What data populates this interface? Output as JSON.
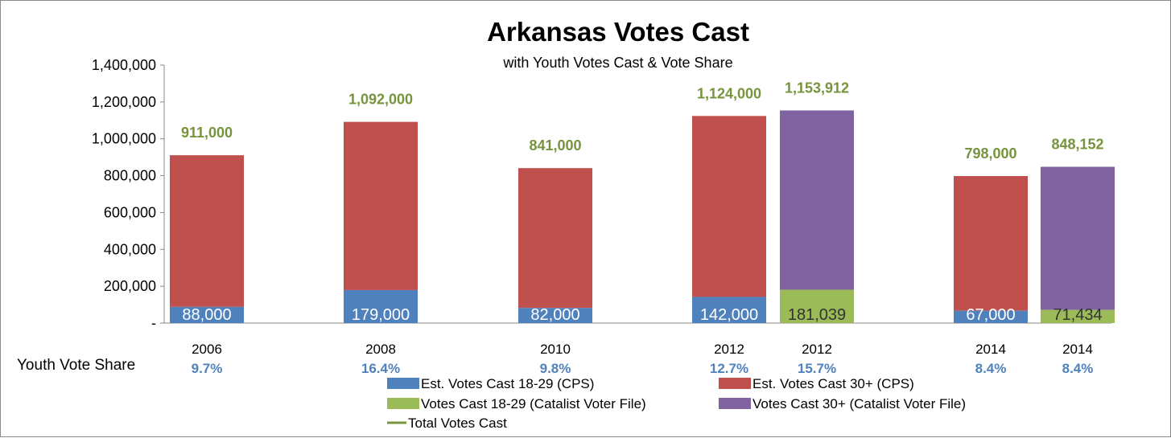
{
  "chart_data": {
    "type": "bar",
    "stacked": true,
    "title": "Arkansas Votes Cast",
    "subtitle": "with Youth Votes Cast & Vote Share",
    "ylim": [
      0,
      1400000
    ],
    "yticks": [
      "-",
      "200,000",
      "400,000",
      "600,000",
      "800,000",
      "1,000,000",
      "1,200,000",
      "1,400,000"
    ],
    "row_label": "Youth Vote Share",
    "grid": false,
    "legend_position": "bottom",
    "colors": {
      "youth_cps": "#4f81bd",
      "adult_cps": "#c0504d",
      "youth_catalist": "#9bbb59",
      "adult_catalist": "#8064a2",
      "total_label": "#77933c",
      "share_label": "#4f81bd"
    },
    "legend": [
      {
        "key": "youth_cps",
        "label": "Est. Votes Cast 18-29 (CPS)",
        "symbol": "box"
      },
      {
        "key": "adult_cps",
        "label": "Est. Votes Cast 30+ (CPS)",
        "symbol": "box"
      },
      {
        "key": "youth_catalist",
        "label": "Votes Cast 18-29 (Catalist Voter File)",
        "symbol": "box"
      },
      {
        "key": "adult_catalist",
        "label": "Votes Cast 30+ (Catalist Voter File)",
        "symbol": "box"
      },
      {
        "key": "total_label",
        "label": "Total Votes Cast",
        "symbol": "line"
      }
    ],
    "bars": [
      {
        "category": "2006",
        "source": "cps",
        "youth": 88000,
        "youth_label": "88,000",
        "total": 911000,
        "total_label": "911,000",
        "share": "9.7%"
      },
      {
        "category": "2008",
        "source": "cps",
        "youth": 179000,
        "youth_label": "179,000",
        "total": 1092000,
        "total_label": "1,092,000",
        "share": "16.4%"
      },
      {
        "category": "2010",
        "source": "cps",
        "youth": 82000,
        "youth_label": "82,000",
        "total": 841000,
        "total_label": "841,000",
        "share": "9.8%"
      },
      {
        "category": "2012",
        "source": "cps",
        "youth": 142000,
        "youth_label": "142,000",
        "total": 1124000,
        "total_label": "1,124,000",
        "share": "12.7%"
      },
      {
        "category": "2012",
        "source": "catalist",
        "youth": 181039,
        "youth_label": "181,039",
        "total": 1153912,
        "total_label": "1,153,912",
        "share": "15.7%"
      },
      {
        "category": "2014",
        "source": "cps",
        "youth": 67000,
        "youth_label": "67,000",
        "total": 798000,
        "total_label": "798,000",
        "share": "8.4%"
      },
      {
        "category": "2014",
        "source": "catalist",
        "youth": 71434,
        "youth_label": "71,434",
        "total": 848152,
        "total_label": "848,152",
        "share": "8.4%"
      }
    ]
  }
}
